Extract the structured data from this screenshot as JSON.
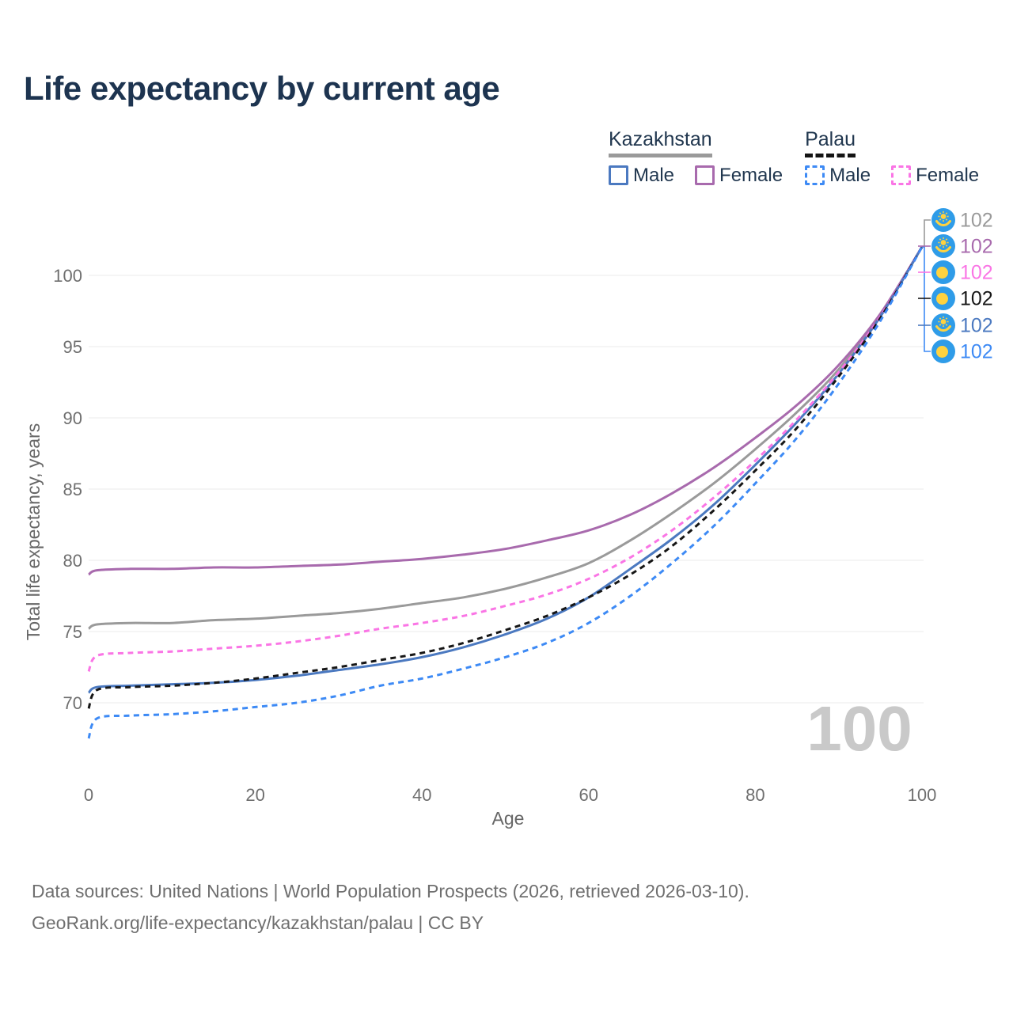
{
  "title": "Life expectancy by current age",
  "watermark": "100",
  "legend": {
    "groups": [
      {
        "id": "kazakhstan",
        "label": "Kazakhstan",
        "line_color": "#9a9a9a",
        "line_style": "solid",
        "items": [
          {
            "id": "kazakhstan-male",
            "label": "Male",
            "color": "#4b79c0",
            "style": "solid"
          },
          {
            "id": "kazakhstan-female",
            "label": "Female",
            "color": "#a86aad",
            "style": "solid"
          }
        ]
      },
      {
        "id": "palau",
        "label": "Palau",
        "line_color": "#141414",
        "line_style": "dashed",
        "items": [
          {
            "id": "palau-male",
            "label": "Male",
            "color": "#3d8af5",
            "style": "dashed"
          },
          {
            "id": "palau-female",
            "label": "Female",
            "color": "#fa75e5",
            "style": "dashed"
          }
        ]
      }
    ]
  },
  "footer": {
    "line1": "Data sources: United Nations | World Population Prospects (2026, retrieved 2026-03-10).",
    "line2": "GeoRank.org/life-expectancy/kazakhstan/palau | CC BY"
  },
  "chart_data": {
    "type": "line",
    "title": "Life expectancy by current age",
    "xlabel": "Age",
    "ylabel": "Total life expectancy, years",
    "xlim": [
      0,
      100
    ],
    "ylim": [
      66,
      103
    ],
    "x_ticks": [
      0,
      20,
      40,
      60,
      80,
      100
    ],
    "y_ticks": [
      70,
      75,
      80,
      85,
      90,
      95,
      100
    ],
    "grid": "horizontal",
    "legend_position": "top-right",
    "current_age_indicator": "100",
    "x": [
      0,
      1,
      5,
      10,
      15,
      20,
      25,
      30,
      35,
      40,
      45,
      50,
      55,
      60,
      65,
      70,
      75,
      80,
      85,
      90,
      95,
      100
    ],
    "series": [
      {
        "id": "kazakhstan-both",
        "name": "Kazakhstan",
        "sex": "both",
        "color": "#9a9a9a",
        "dash": false,
        "values": [
          75.2,
          75.5,
          75.6,
          75.6,
          75.8,
          75.9,
          76.1,
          76.3,
          76.6,
          77.0,
          77.4,
          78.0,
          78.8,
          79.8,
          81.4,
          83.3,
          85.4,
          87.8,
          90.4,
          93.4,
          97.2,
          102
        ]
      },
      {
        "id": "kazakhstan-female",
        "name": "Kazakhstan Female",
        "sex": "female",
        "color": "#a86aad",
        "dash": false,
        "values": [
          79.0,
          79.3,
          79.4,
          79.4,
          79.5,
          79.5,
          79.6,
          79.7,
          79.9,
          80.1,
          80.4,
          80.8,
          81.4,
          82.1,
          83.2,
          84.7,
          86.5,
          88.6,
          90.9,
          93.7,
          97.3,
          102
        ]
      },
      {
        "id": "kazakhstan-male",
        "name": "Kazakhstan Male",
        "sex": "male",
        "color": "#4b79c0",
        "dash": false,
        "values": [
          70.7,
          71.1,
          71.2,
          71.3,
          71.4,
          71.6,
          71.9,
          72.3,
          72.7,
          73.2,
          73.9,
          74.8,
          75.9,
          77.4,
          79.4,
          81.5,
          83.9,
          86.7,
          89.7,
          93.1,
          97.1,
          102
        ]
      },
      {
        "id": "palau-female",
        "name": "Palau Female",
        "sex": "female",
        "color": "#fa75e5",
        "dash": true,
        "values": [
          72.2,
          73.3,
          73.5,
          73.6,
          73.8,
          74.0,
          74.3,
          74.7,
          75.2,
          75.6,
          76.1,
          76.8,
          77.6,
          78.7,
          80.2,
          82.1,
          84.4,
          87.0,
          89.9,
          93.2,
          97.1,
          102
        ]
      },
      {
        "id": "palau-both",
        "name": "Palau",
        "sex": "both",
        "color": "#161616",
        "dash": true,
        "values": [
          69.6,
          70.9,
          71.1,
          71.2,
          71.4,
          71.7,
          72.1,
          72.5,
          73.0,
          73.5,
          74.2,
          75.1,
          76.1,
          77.4,
          79.0,
          81.0,
          83.5,
          86.3,
          89.3,
          92.9,
          97.0,
          102
        ]
      },
      {
        "id": "palau-male",
        "name": "Palau Male",
        "sex": "male",
        "color": "#3d8af5",
        "dash": true,
        "values": [
          67.5,
          68.9,
          69.1,
          69.2,
          69.4,
          69.7,
          70.0,
          70.5,
          71.2,
          71.7,
          72.4,
          73.2,
          74.2,
          75.6,
          77.5,
          79.8,
          82.4,
          85.4,
          88.6,
          92.4,
          96.8,
          102
        ]
      }
    ],
    "end_labels": [
      {
        "text": "102",
        "flag": "kazakhstan",
        "color": "#9a9a9a",
        "series": "kazakhstan-both"
      },
      {
        "text": "102",
        "flag": "kazakhstan",
        "color": "#a86aad",
        "series": "kazakhstan-female"
      },
      {
        "text": "102",
        "flag": "palau",
        "color": "#fa75e5",
        "series": "palau-female"
      },
      {
        "text": "102",
        "flag": "palau",
        "color": "#161616",
        "series": "palau-both"
      },
      {
        "text": "102",
        "flag": "kazakhstan",
        "color": "#4b79c0",
        "series": "kazakhstan-male"
      },
      {
        "text": "102",
        "flag": "palau",
        "color": "#3d8af5",
        "series": "palau-male"
      }
    ],
    "colors": {
      "grid": "#ebebeb",
      "tick_text": "#6f6f6f",
      "axis_label": "#666666",
      "watermark": "#c9c9c9",
      "flag_blue": "#2f9ce8",
      "flag_gold": "#ffd23f"
    }
  }
}
